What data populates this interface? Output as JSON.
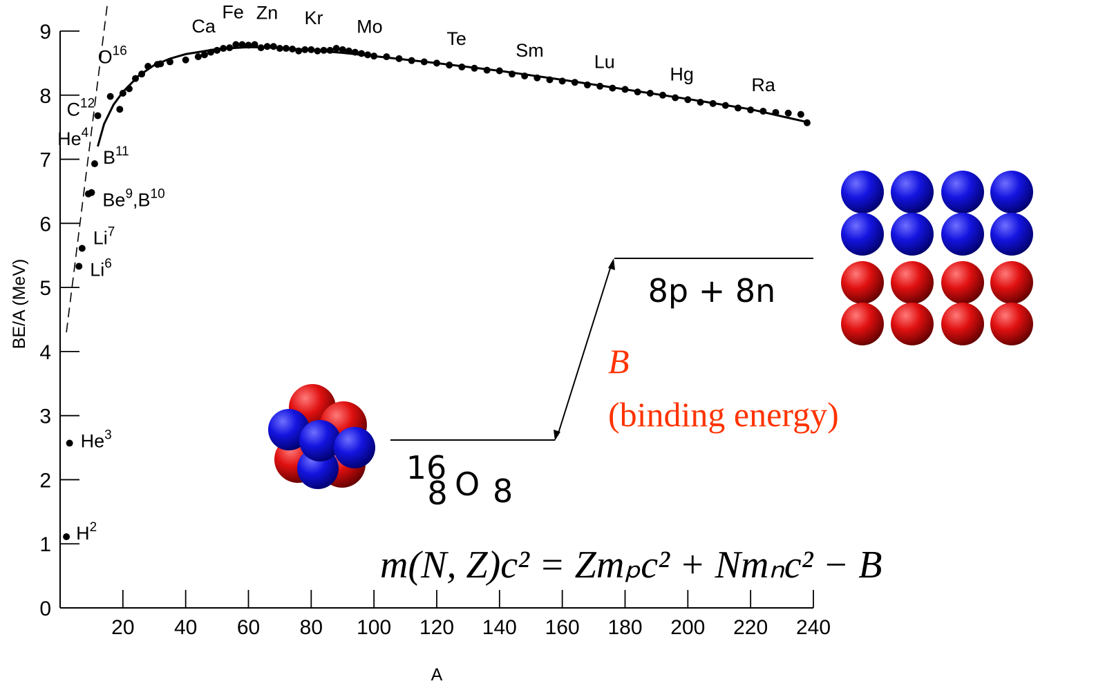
{
  "chart_data": {
    "type": "scatter",
    "xlabel": "A",
    "ylabel": "BE/A (MeV)",
    "xlim": [
      0,
      240
    ],
    "ylim": [
      0,
      9
    ],
    "x_ticks": [
      "20",
      "40",
      "60",
      "80",
      "100",
      "120",
      "140",
      "160",
      "180",
      "200",
      "220",
      "240"
    ],
    "y_ticks": [
      "0",
      "1",
      "2",
      "3",
      "4",
      "5",
      "6",
      "7",
      "8",
      "9"
    ],
    "grid": false,
    "series": [
      {
        "points": [
          [
            2,
            1.11
          ],
          [
            3,
            2.57
          ],
          [
            6,
            5.33
          ],
          [
            7,
            5.61
          ],
          [
            9,
            6.46
          ],
          [
            10,
            6.48
          ],
          [
            11,
            6.93
          ],
          [
            12,
            7.68
          ],
          [
            16,
            7.98
          ],
          [
            19,
            7.78
          ],
          [
            20,
            8.03
          ],
          [
            22,
            8.1
          ],
          [
            24,
            8.26
          ],
          [
            26,
            8.33
          ],
          [
            28,
            8.45
          ],
          [
            31,
            8.48
          ],
          [
            32,
            8.49
          ],
          [
            35,
            8.52
          ],
          [
            40,
            8.55
          ],
          [
            44,
            8.6
          ],
          [
            46,
            8.63
          ],
          [
            48,
            8.67
          ],
          [
            50,
            8.7
          ],
          [
            52,
            8.73
          ],
          [
            54,
            8.74
          ],
          [
            56,
            8.79
          ],
          [
            58,
            8.79
          ],
          [
            60,
            8.78
          ],
          [
            62,
            8.79
          ],
          [
            64,
            8.74
          ],
          [
            66,
            8.76
          ],
          [
            68,
            8.76
          ],
          [
            70,
            8.73
          ],
          [
            72,
            8.73
          ],
          [
            74,
            8.72
          ],
          [
            76,
            8.69
          ],
          [
            78,
            8.71
          ],
          [
            80,
            8.71
          ],
          [
            82,
            8.69
          ],
          [
            84,
            8.7
          ],
          [
            86,
            8.7
          ],
          [
            88,
            8.73
          ],
          [
            90,
            8.71
          ],
          [
            92,
            8.69
          ],
          [
            94,
            8.67
          ],
          [
            96,
            8.65
          ],
          [
            98,
            8.63
          ],
          [
            100,
            8.61
          ],
          [
            104,
            8.6
          ],
          [
            108,
            8.57
          ],
          [
            112,
            8.54
          ],
          [
            116,
            8.52
          ],
          [
            120,
            8.5
          ],
          [
            124,
            8.47
          ],
          [
            128,
            8.44
          ],
          [
            132,
            8.42
          ],
          [
            136,
            8.39
          ],
          [
            140,
            8.38
          ],
          [
            144,
            8.33
          ],
          [
            148,
            8.3
          ],
          [
            152,
            8.27
          ],
          [
            156,
            8.24
          ],
          [
            160,
            8.22
          ],
          [
            164,
            8.2
          ],
          [
            168,
            8.16
          ],
          [
            172,
            8.14
          ],
          [
            176,
            8.11
          ],
          [
            180,
            8.09
          ],
          [
            184,
            8.05
          ],
          [
            188,
            8.03
          ],
          [
            192,
            8.0
          ],
          [
            196,
            7.96
          ],
          [
            200,
            7.93
          ],
          [
            204,
            7.89
          ],
          [
            208,
            7.87
          ],
          [
            212,
            7.84
          ],
          [
            216,
            7.8
          ],
          [
            220,
            7.77
          ],
          [
            224,
            7.75
          ],
          [
            228,
            7.73
          ],
          [
            232,
            7.72
          ],
          [
            236,
            7.7
          ],
          [
            238,
            7.57
          ]
        ]
      }
    ],
    "fit_curve": [
      [
        12,
        7.2
      ],
      [
        14,
        7.55
      ],
      [
        17,
        7.85
      ],
      [
        20,
        8.05
      ],
      [
        25,
        8.3
      ],
      [
        30,
        8.47
      ],
      [
        35,
        8.57
      ],
      [
        40,
        8.64
      ],
      [
        50,
        8.72
      ],
      [
        60,
        8.75
      ],
      [
        70,
        8.74
      ],
      [
        80,
        8.7
      ],
      [
        90,
        8.66
      ],
      [
        100,
        8.61
      ],
      [
        120,
        8.5
      ],
      [
        140,
        8.38
      ],
      [
        160,
        8.24
      ],
      [
        180,
        8.09
      ],
      [
        200,
        7.94
      ],
      [
        220,
        7.78
      ],
      [
        238,
        7.58
      ]
    ],
    "dashed_line": [
      [
        2,
        4.3
      ],
      [
        15,
        9.4
      ]
    ],
    "element_labels": [
      {
        "sym": "H",
        "sup": "2",
        "x": 2,
        "y": 1.11
      },
      {
        "sym": "He",
        "sup": "3",
        "x": 3,
        "y": 2.57
      },
      {
        "sym": "Li",
        "sup": "6",
        "x": 6,
        "y": 5.33
      },
      {
        "sym": "Li",
        "sup": "7",
        "x": 7,
        "y": 5.61
      },
      {
        "sym": "Be",
        "sup": "9",
        "sym2": ",B",
        "sup2": "10",
        "x": 10,
        "y": 6.46
      },
      {
        "sym": "B",
        "sup": "11",
        "x": 11,
        "y": 6.93
      },
      {
        "sym": "He",
        "sup": "4",
        "x": 4,
        "y": 7.07
      },
      {
        "sym": "C",
        "sup": "12",
        "x": 12,
        "y": 7.68
      },
      {
        "sym": "O",
        "sup": "16",
        "x": 16,
        "y": 7.98
      },
      {
        "sym": "Ca",
        "x": 45,
        "y": 8.55
      },
      {
        "sym": "Fe",
        "x": 56,
        "y": 8.79
      },
      {
        "sym": "Zn",
        "x": 66,
        "y": 8.76
      },
      {
        "sym": "Kr",
        "x": 84,
        "y": 8.7
      },
      {
        "sym": "Mo",
        "x": 98,
        "y": 8.63
      },
      {
        "sym": "Te",
        "x": 128,
        "y": 8.44
      },
      {
        "sym": "Sm",
        "x": 150,
        "y": 8.28
      },
      {
        "sym": "Lu",
        "x": 175,
        "y": 8.12
      },
      {
        "sym": "Hg",
        "x": 200,
        "y": 7.93
      },
      {
        "sym": "Ra",
        "x": 226,
        "y": 7.74
      }
    ]
  },
  "annotations": {
    "free_nucleons": "8p + 8n",
    "nucleus_mass": "16",
    "nucleus_charge": "8",
    "nucleus_symbol": "O",
    "nucleus_sub": "8",
    "binding_symbol": "B",
    "binding_label": "(binding energy)",
    "equation": "m(N, Z)c² = Zmₚc² + Nmₙc² − B"
  },
  "colors": {
    "proton": "#dd1111",
    "neutron": "#1111dd",
    "binding": "#ff3300"
  }
}
